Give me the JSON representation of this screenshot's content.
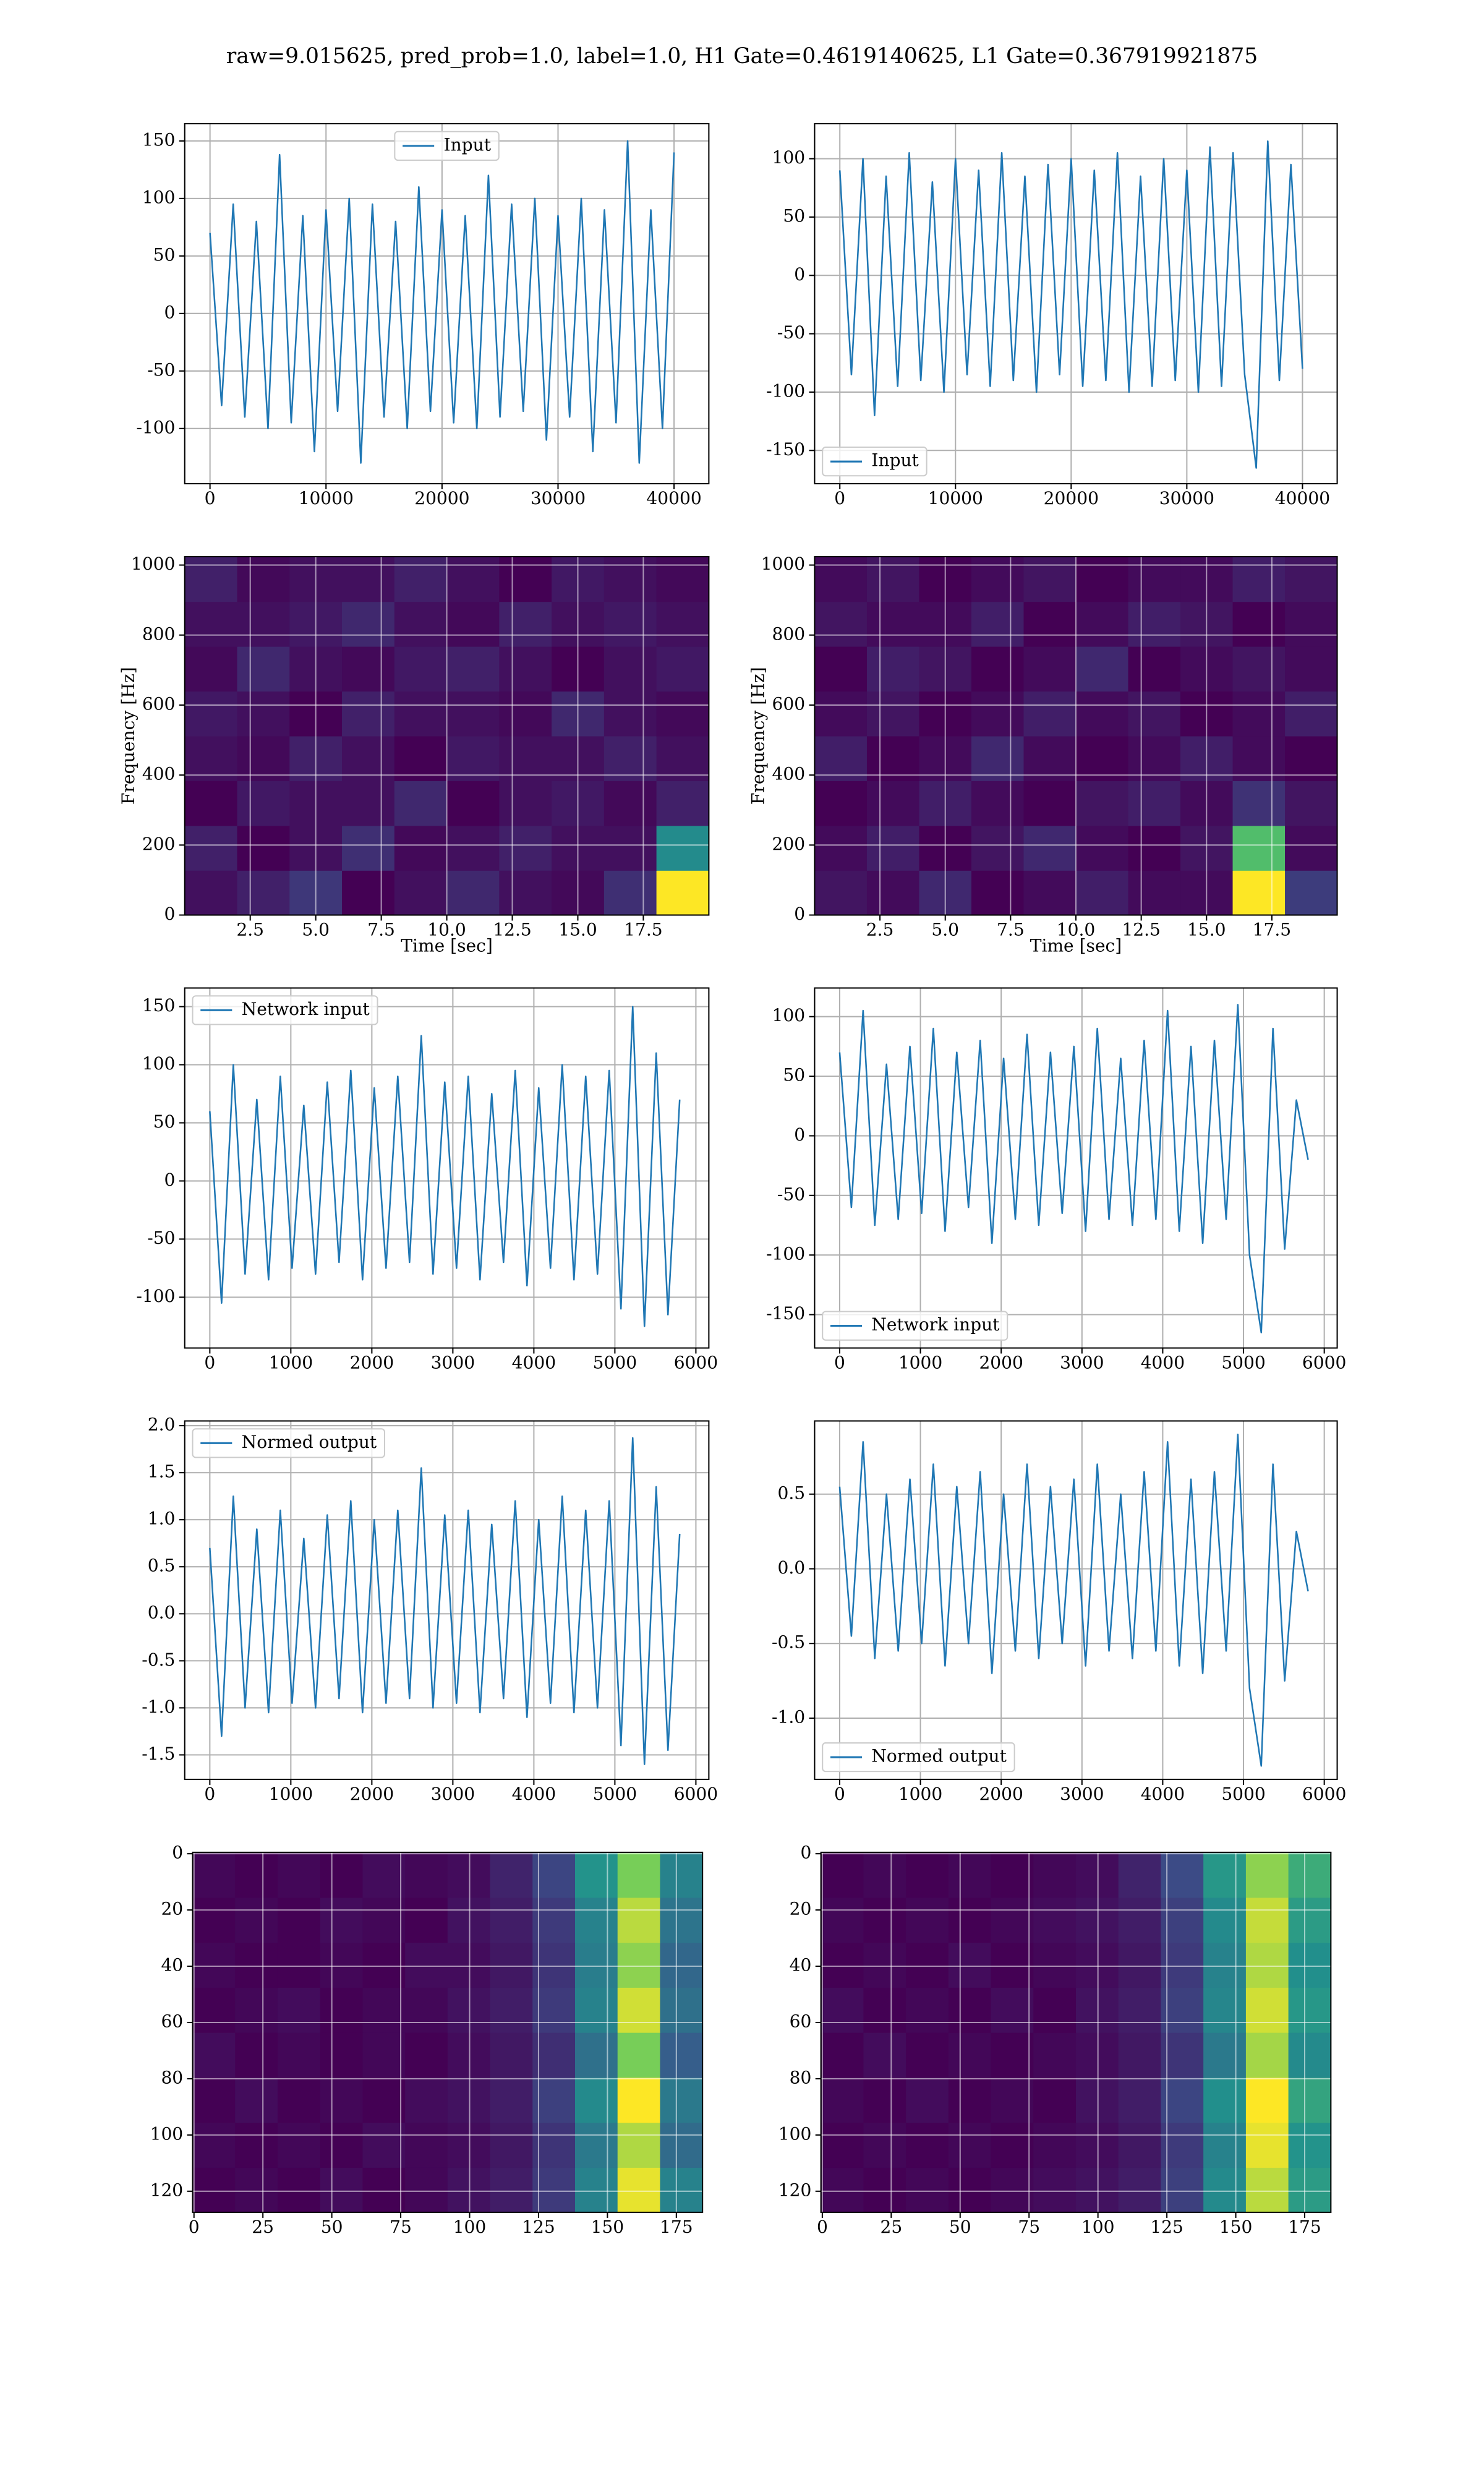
{
  "title": "raw=9.015625, pred_prob=1.0, label=1.0, H1 Gate=0.4619140625, L1 Gate=0.367919921875",
  "chart_data": [
    {
      "type": "line",
      "legend": "upper center",
      "grid": true,
      "x": [
        0,
        1000,
        2000,
        3000,
        4000,
        5000,
        6000,
        7000,
        8000,
        9000,
        10000,
        11000,
        12000,
        13000,
        14000,
        15000,
        16000,
        17000,
        18000,
        19000,
        20000,
        21000,
        22000,
        23000,
        24000,
        25000,
        26000,
        27000,
        28000,
        29000,
        30000,
        31000,
        32000,
        33000,
        34000,
        35000,
        36000,
        37000,
        38000,
        39000,
        40000
      ],
      "series": [
        {
          "name": "Input",
          "color": "#1f77b4",
          "values": [
            70,
            -80,
            95,
            -90,
            80,
            -100,
            138,
            -95,
            85,
            -120,
            90,
            -85,
            100,
            -130,
            95,
            -90,
            80,
            -100,
            110,
            -85,
            90,
            -95,
            85,
            -100,
            120,
            -90,
            95,
            -85,
            100,
            -110,
            85,
            -90,
            100,
            -120,
            90,
            -95,
            150,
            -130,
            90,
            -100,
            140
          ]
        }
      ],
      "xlim": [
        -2180,
        43000
      ],
      "xticks": [
        0,
        10000,
        20000,
        30000,
        40000
      ],
      "ylim": [
        -148,
        165
      ],
      "yticks": [
        -100,
        -50,
        0,
        50,
        100,
        150
      ]
    },
    {
      "type": "line",
      "legend": "lower left",
      "grid": true,
      "x": [
        0,
        1000,
        2000,
        3000,
        4000,
        5000,
        6000,
        7000,
        8000,
        9000,
        10000,
        11000,
        12000,
        13000,
        14000,
        15000,
        16000,
        17000,
        18000,
        19000,
        20000,
        21000,
        22000,
        23000,
        24000,
        25000,
        26000,
        27000,
        28000,
        29000,
        30000,
        31000,
        32000,
        33000,
        34000,
        35000,
        36000,
        37000,
        38000,
        39000,
        40000
      ],
      "series": [
        {
          "name": "Input",
          "color": "#1f77b4",
          "values": [
            90,
            -85,
            100,
            -120,
            85,
            -95,
            105,
            -90,
            80,
            -100,
            100,
            -85,
            90,
            -95,
            105,
            -90,
            85,
            -100,
            95,
            -85,
            100,
            -95,
            90,
            -90,
            105,
            -100,
            85,
            -95,
            100,
            -90,
            90,
            -100,
            110,
            -95,
            105,
            -85,
            -165,
            115,
            -90,
            95,
            -80
          ]
        }
      ],
      "xlim": [
        -2180,
        43000
      ],
      "xticks": [
        0,
        10000,
        20000,
        30000,
        40000
      ],
      "ylim": [
        -178.5,
        130
      ],
      "yticks": [
        -150,
        -100,
        -50,
        0,
        50,
        100
      ]
    },
    {
      "type": "heatmap",
      "colormap": "viridis",
      "grid": true,
      "xlabel": "Time [sec]",
      "ylabel": "Frequency [Hz]",
      "z": [
        [
          0.2,
          0.22,
          0.25,
          0.18,
          0.2,
          0.23,
          0.2,
          0.19,
          0.24,
          0.6
        ],
        [
          0.22,
          0.18,
          0.2,
          0.24,
          0.19,
          0.2,
          0.22,
          0.2,
          0.2,
          0.38
        ],
        [
          0.18,
          0.21,
          0.2,
          0.2,
          0.23,
          0.18,
          0.2,
          0.21,
          0.19,
          0.22
        ],
        [
          0.2,
          0.19,
          0.22,
          0.2,
          0.18,
          0.21,
          0.2,
          0.2,
          0.22,
          0.2
        ],
        [
          0.21,
          0.2,
          0.18,
          0.22,
          0.2,
          0.2,
          0.19,
          0.23,
          0.2,
          0.19
        ],
        [
          0.19,
          0.23,
          0.2,
          0.19,
          0.21,
          0.22,
          0.2,
          0.18,
          0.2,
          0.21
        ],
        [
          0.2,
          0.2,
          0.21,
          0.23,
          0.2,
          0.19,
          0.22,
          0.2,
          0.21,
          0.2
        ],
        [
          0.22,
          0.19,
          0.2,
          0.2,
          0.22,
          0.2,
          0.18,
          0.21,
          0.2,
          0.19
        ]
      ],
      "xlim": [
        0,
        20
      ],
      "xticks": [
        2.5,
        {
          "value": 5,
          "label": "5.0"
        },
        7.5,
        {
          "value": 10,
          "label": "10.0"
        },
        12.5,
        {
          "value": 15,
          "label": "15.0"
        },
        17.5
      ],
      "ylim": [
        0,
        1024
      ],
      "yticks": [
        0,
        200,
        400,
        600,
        800,
        1000
      ]
    },
    {
      "type": "heatmap",
      "colormap": "viridis",
      "grid": true,
      "xlabel": "Time [sec]",
      "ylabel": "Frequency [Hz]",
      "z": [
        [
          0.21,
          0.2,
          0.23,
          0.19,
          0.2,
          0.22,
          0.2,
          0.2,
          0.52,
          0.25
        ],
        [
          0.2,
          0.22,
          0.19,
          0.21,
          0.23,
          0.2,
          0.19,
          0.21,
          0.42,
          0.2
        ],
        [
          0.19,
          0.2,
          0.22,
          0.2,
          0.19,
          0.21,
          0.22,
          0.2,
          0.24,
          0.21
        ],
        [
          0.22,
          0.19,
          0.2,
          0.23,
          0.2,
          0.19,
          0.2,
          0.22,
          0.2,
          0.19
        ],
        [
          0.2,
          0.21,
          0.19,
          0.2,
          0.22,
          0.2,
          0.21,
          0.19,
          0.2,
          0.22
        ],
        [
          0.19,
          0.22,
          0.21,
          0.19,
          0.2,
          0.23,
          0.19,
          0.2,
          0.21,
          0.2
        ],
        [
          0.21,
          0.2,
          0.2,
          0.22,
          0.19,
          0.2,
          0.22,
          0.21,
          0.19,
          0.2
        ],
        [
          0.2,
          0.21,
          0.19,
          0.2,
          0.21,
          0.19,
          0.2,
          0.2,
          0.22,
          0.21
        ]
      ],
      "xlim": [
        0,
        20
      ],
      "xticks": [
        2.5,
        {
          "value": 5,
          "label": "5.0"
        },
        7.5,
        {
          "value": 10,
          "label": "10.0"
        },
        12.5,
        {
          "value": 15,
          "label": "15.0"
        },
        17.5
      ],
      "ylim": [
        0,
        1024
      ],
      "yticks": [
        0,
        200,
        400,
        600,
        800,
        1000
      ]
    },
    {
      "type": "line",
      "legend": "upper left",
      "grid": true,
      "x": [
        0,
        145,
        290,
        435,
        580,
        725,
        870,
        1015,
        1160,
        1305,
        1450,
        1595,
        1740,
        1885,
        2030,
        2175,
        2320,
        2465,
        2610,
        2755,
        2900,
        3045,
        3190,
        3335,
        3480,
        3625,
        3770,
        3915,
        4060,
        4205,
        4350,
        4495,
        4640,
        4785,
        4930,
        5075,
        5220,
        5365,
        5510,
        5655,
        5800
      ],
      "series": [
        {
          "name": "Network input",
          "color": "#1f77b4",
          "values": [
            60,
            -105,
            100,
            -80,
            70,
            -85,
            90,
            -75,
            65,
            -80,
            85,
            -70,
            95,
            -85,
            80,
            -75,
            90,
            -70,
            125,
            -80,
            85,
            -75,
            90,
            -85,
            75,
            -70,
            95,
            -90,
            80,
            -75,
            100,
            -85,
            90,
            -80,
            95,
            -110,
            150,
            -125,
            110,
            -115,
            70
          ]
        }
      ],
      "xlim": [
        -310,
        6160
      ],
      "xticks": [
        0,
        1000,
        2000,
        3000,
        4000,
        5000,
        6000
      ],
      "ylim": [
        -143.7,
        166
      ],
      "yticks": [
        -100,
        -50,
        0,
        50,
        100,
        150
      ]
    },
    {
      "type": "line",
      "legend": "lower left",
      "grid": true,
      "x": [
        0,
        145,
        290,
        435,
        580,
        725,
        870,
        1015,
        1160,
        1305,
        1450,
        1595,
        1740,
        1885,
        2030,
        2175,
        2320,
        2465,
        2610,
        2755,
        2900,
        3045,
        3190,
        3335,
        3480,
        3625,
        3770,
        3915,
        4060,
        4205,
        4350,
        4495,
        4640,
        4785,
        4930,
        5075,
        5220,
        5365,
        5510,
        5655,
        5800
      ],
      "series": [
        {
          "name": "Network input",
          "color": "#1f77b4",
          "values": [
            70,
            -60,
            105,
            -75,
            60,
            -70,
            75,
            -65,
            90,
            -80,
            70,
            -60,
            80,
            -90,
            65,
            -70,
            85,
            -75,
            70,
            -65,
            75,
            -80,
            90,
            -70,
            65,
            -75,
            80,
            -70,
            105,
            -80,
            75,
            -90,
            80,
            -70,
            110,
            -100,
            -165,
            90,
            -95,
            30,
            -20
          ]
        }
      ],
      "xlim": [
        -310,
        6160
      ],
      "xticks": [
        0,
        1000,
        2000,
        3000,
        4000,
        5000,
        6000
      ],
      "ylim": [
        -178,
        124
      ],
      "yticks": [
        -150,
        -100,
        -50,
        0,
        50,
        100
      ]
    },
    {
      "type": "line",
      "legend": "upper left",
      "grid": true,
      "x": [
        0,
        145,
        290,
        435,
        580,
        725,
        870,
        1015,
        1160,
        1305,
        1450,
        1595,
        1740,
        1885,
        2030,
        2175,
        2320,
        2465,
        2610,
        2755,
        2900,
        3045,
        3190,
        3335,
        3480,
        3625,
        3770,
        3915,
        4060,
        4205,
        4350,
        4495,
        4640,
        4785,
        4930,
        5075,
        5220,
        5365,
        5510,
        5655,
        5800
      ],
      "series": [
        {
          "name": "Normed output",
          "color": "#1f77b4",
          "values": [
            0.7,
            -1.3,
            1.25,
            -1.0,
            0.9,
            -1.05,
            1.1,
            -0.95,
            0.8,
            -1.0,
            1.05,
            -0.9,
            1.2,
            -1.05,
            1.0,
            -0.95,
            1.1,
            -0.9,
            1.55,
            -1.0,
            1.05,
            -0.95,
            1.1,
            -1.05,
            0.95,
            -0.9,
            1.2,
            -1.1,
            1.0,
            -0.95,
            1.25,
            -1.05,
            1.1,
            -1.0,
            1.2,
            -1.4,
            1.87,
            -1.6,
            1.35,
            -1.45,
            0.85
          ]
        }
      ],
      "xlim": [
        -310,
        6160
      ],
      "xticks": [
        0,
        1000,
        2000,
        3000,
        4000,
        5000,
        6000
      ],
      "ylim": [
        -1.76,
        2.05
      ],
      "yticks": [
        -1.5,
        {
          "value": -1,
          "label": "-1.0"
        },
        -0.5,
        {
          "value": 0,
          "label": "0.0"
        },
        0.5,
        {
          "value": 1,
          "label": "1.0"
        },
        1.5,
        {
          "value": 2,
          "label": "2.0"
        }
      ]
    },
    {
      "type": "line",
      "legend": "lower left",
      "grid": true,
      "x": [
        0,
        145,
        290,
        435,
        580,
        725,
        870,
        1015,
        1160,
        1305,
        1450,
        1595,
        1740,
        1885,
        2030,
        2175,
        2320,
        2465,
        2610,
        2755,
        2900,
        3045,
        3190,
        3335,
        3480,
        3625,
        3770,
        3915,
        4060,
        4205,
        4350,
        4495,
        4640,
        4785,
        4930,
        5075,
        5220,
        5365,
        5510,
        5655,
        5800
      ],
      "series": [
        {
          "name": "Normed output",
          "color": "#1f77b4",
          "values": [
            0.55,
            -0.45,
            0.85,
            -0.6,
            0.5,
            -0.55,
            0.6,
            -0.5,
            0.7,
            -0.65,
            0.55,
            -0.5,
            0.65,
            -0.7,
            0.5,
            -0.55,
            0.7,
            -0.6,
            0.55,
            -0.5,
            0.6,
            -0.65,
            0.7,
            -0.55,
            0.5,
            -0.6,
            0.65,
            -0.55,
            0.85,
            -0.65,
            0.6,
            -0.7,
            0.65,
            -0.55,
            0.9,
            -0.8,
            -1.32,
            0.7,
            -0.75,
            0.25,
            -0.15
          ]
        }
      ],
      "xlim": [
        -310,
        6160
      ],
      "xticks": [
        0,
        1000,
        2000,
        3000,
        4000,
        5000,
        6000
      ],
      "ylim": [
        -1.41,
        0.99
      ],
      "yticks": [
        {
          "value": -1,
          "label": "-1.0"
        },
        -0.5,
        {
          "value": 0,
          "label": "0.0"
        },
        0.5
      ]
    },
    {
      "type": "heatmap",
      "colormap": "viridis",
      "grid": true,
      "z": [
        [
          0.05,
          0.06,
          0.05,
          0.07,
          0.05,
          0.06,
          0.08,
          0.1,
          0.15,
          0.3,
          0.6,
          0.3
        ],
        [
          0.06,
          0.05,
          0.06,
          0.05,
          0.07,
          0.06,
          0.07,
          0.09,
          0.14,
          0.28,
          0.55,
          0.25
        ],
        [
          0.05,
          0.07,
          0.05,
          0.06,
          0.05,
          0.07,
          0.08,
          0.1,
          0.16,
          0.32,
          0.62,
          0.28
        ],
        [
          0.07,
          0.05,
          0.06,
          0.05,
          0.06,
          0.05,
          0.07,
          0.09,
          0.13,
          0.26,
          0.5,
          0.22
        ],
        [
          0.05,
          0.06,
          0.07,
          0.05,
          0.06,
          0.06,
          0.08,
          0.1,
          0.15,
          0.3,
          0.58,
          0.26
        ],
        [
          0.06,
          0.05,
          0.05,
          0.06,
          0.05,
          0.07,
          0.07,
          0.09,
          0.14,
          0.29,
          0.52,
          0.24
        ],
        [
          0.05,
          0.06,
          0.05,
          0.07,
          0.06,
          0.05,
          0.08,
          0.1,
          0.15,
          0.3,
          0.56,
          0.27
        ],
        [
          0.06,
          0.05,
          0.06,
          0.05,
          0.07,
          0.06,
          0.07,
          0.11,
          0.17,
          0.34,
          0.5,
          0.3
        ]
      ],
      "xlim": [
        -0.5,
        184.5
      ],
      "xticks": [
        0,
        25,
        50,
        75,
        100,
        125,
        150,
        175
      ],
      "ylim": [
        127.5,
        -0.5
      ],
      "yticks": [
        0,
        20,
        40,
        60,
        80,
        100,
        120
      ]
    },
    {
      "type": "heatmap",
      "colormap": "viridis",
      "grid": true,
      "z": [
        [
          0.06,
          0.05,
          0.06,
          0.05,
          0.06,
          0.07,
          0.08,
          0.1,
          0.16,
          0.32,
          0.56,
          0.36
        ],
        [
          0.05,
          0.06,
          0.05,
          0.06,
          0.05,
          0.06,
          0.07,
          0.09,
          0.15,
          0.3,
          0.6,
          0.34
        ],
        [
          0.06,
          0.05,
          0.07,
          0.05,
          0.06,
          0.05,
          0.08,
          0.1,
          0.17,
          0.33,
          0.62,
          0.38
        ],
        [
          0.05,
          0.07,
          0.05,
          0.06,
          0.05,
          0.06,
          0.07,
          0.09,
          0.14,
          0.28,
          0.54,
          0.32
        ],
        [
          0.07,
          0.05,
          0.06,
          0.05,
          0.07,
          0.05,
          0.08,
          0.1,
          0.16,
          0.31,
          0.58,
          0.35
        ],
        [
          0.05,
          0.06,
          0.05,
          0.07,
          0.05,
          0.06,
          0.07,
          0.09,
          0.15,
          0.3,
          0.55,
          0.33
        ],
        [
          0.06,
          0.05,
          0.06,
          0.05,
          0.06,
          0.07,
          0.08,
          0.1,
          0.16,
          0.32,
          0.57,
          0.36
        ],
        [
          0.05,
          0.06,
          0.05,
          0.06,
          0.05,
          0.06,
          0.07,
          0.11,
          0.18,
          0.35,
          0.52,
          0.4
        ]
      ],
      "xlim": [
        -0.5,
        184.5
      ],
      "xticks": [
        0,
        25,
        50,
        75,
        100,
        125,
        150,
        175
      ],
      "ylim": [
        127.5,
        -0.5
      ],
      "yticks": [
        0,
        20,
        40,
        60,
        80,
        100,
        120
      ]
    }
  ]
}
